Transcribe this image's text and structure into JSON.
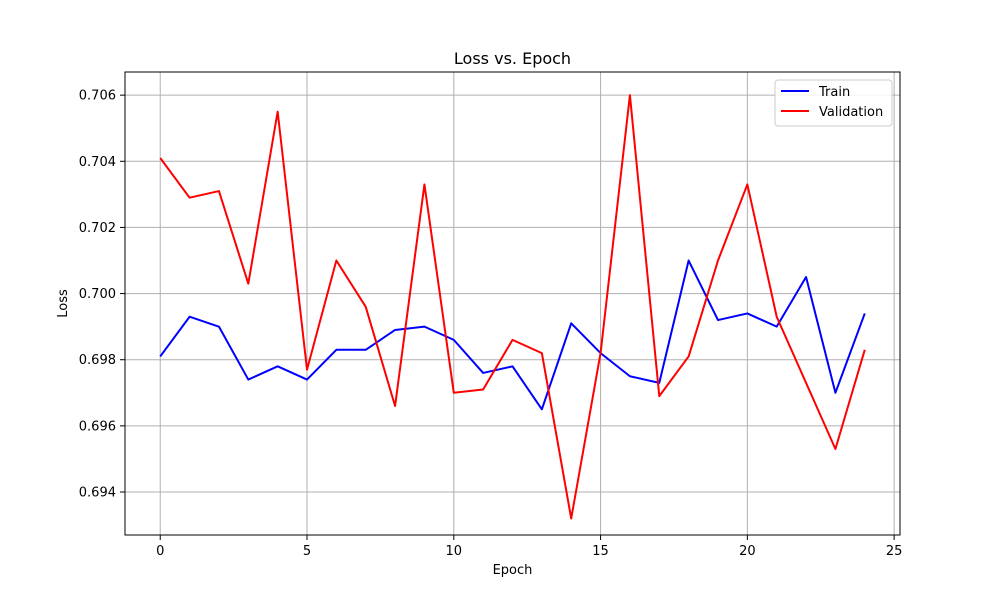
{
  "chart_data": {
    "type": "line",
    "title": "Loss vs. Epoch",
    "xlabel": "Epoch",
    "ylabel": "Loss",
    "xlim": [
      -1.2,
      25.2
    ],
    "ylim": [
      0.6927,
      0.7067
    ],
    "x_ticks": [
      0,
      5,
      10,
      15,
      20,
      25
    ],
    "y_ticks": [
      0.694,
      0.696,
      0.698,
      0.7,
      0.702,
      0.704,
      0.706
    ],
    "grid": true,
    "legend_position": "top-right",
    "x": [
      0,
      1,
      2,
      3,
      4,
      5,
      6,
      7,
      8,
      9,
      10,
      11,
      12,
      13,
      14,
      15,
      16,
      17,
      18,
      19,
      20,
      21,
      22,
      23,
      24
    ],
    "series": [
      {
        "name": "Train",
        "color": "#0000ff",
        "values": [
          0.6981,
          0.6993,
          0.699,
          0.6974,
          0.6978,
          0.6974,
          0.6983,
          0.6983,
          0.6989,
          0.699,
          0.6986,
          0.6976,
          0.6978,
          0.6965,
          0.6991,
          0.6982,
          0.6975,
          0.6973,
          0.701,
          0.6992,
          0.6994,
          0.699,
          0.7005,
          0.697,
          0.6994
        ]
      },
      {
        "name": "Validation",
        "color": "#ff0000",
        "values": [
          0.7041,
          0.7029,
          0.7031,
          0.7003,
          0.7055,
          0.6977,
          0.701,
          0.6996,
          0.6966,
          0.7033,
          0.697,
          0.6971,
          0.6986,
          0.6982,
          0.6932,
          0.6982,
          0.706,
          0.6969,
          0.6981,
          0.701,
          0.7033,
          0.6993,
          0.6973,
          0.6953,
          0.6983
        ]
      }
    ]
  }
}
